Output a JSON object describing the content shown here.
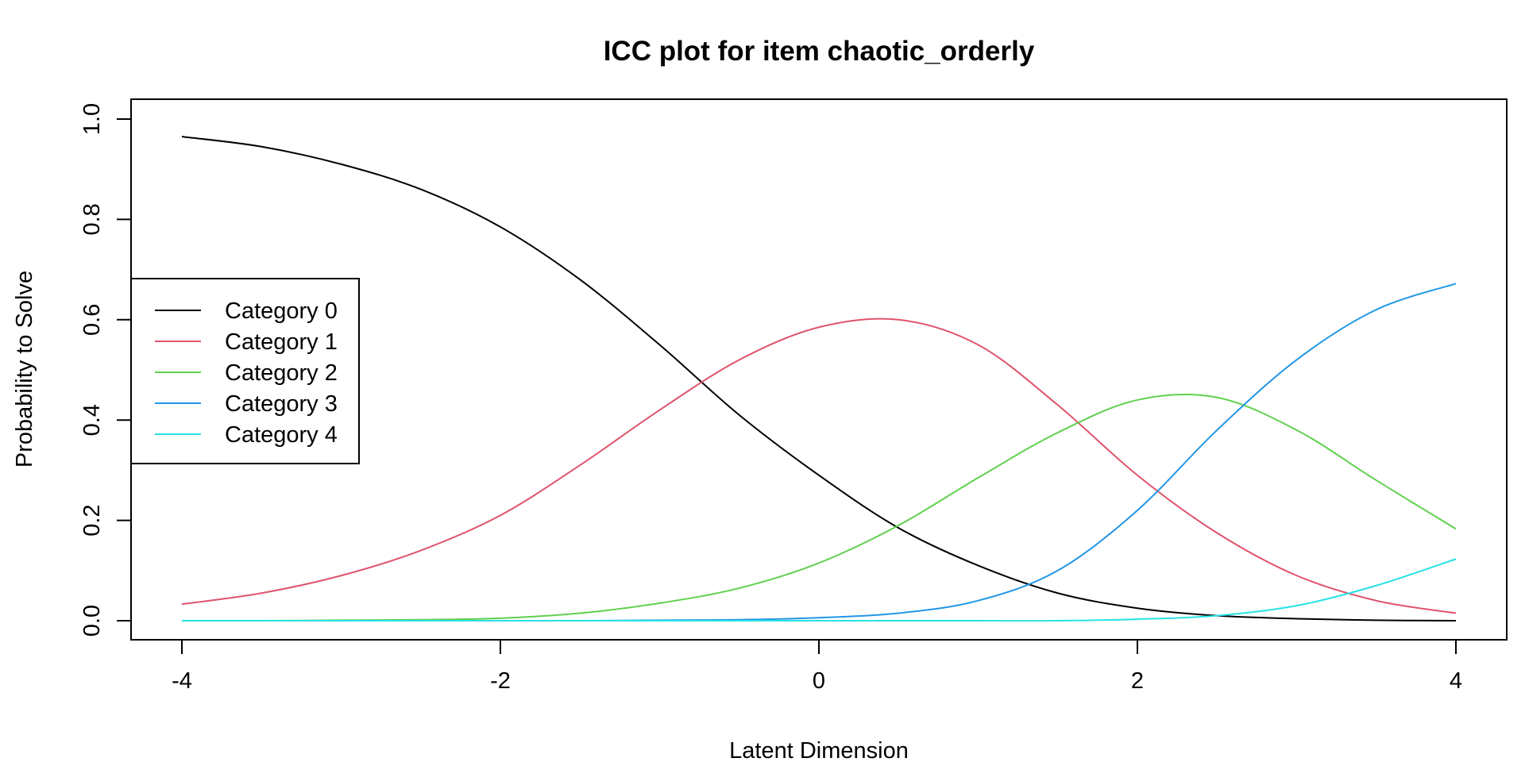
{
  "chart_data": {
    "type": "line",
    "title": "ICC plot for item chaotic_orderly",
    "xlabel": "Latent Dimension",
    "ylabel": "Probability to Solve",
    "xlim": [
      -4,
      4
    ],
    "ylim": [
      0,
      1
    ],
    "xticks": [
      -4,
      -2,
      0,
      2,
      4
    ],
    "yticks": [
      0.0,
      0.2,
      0.4,
      0.6,
      0.8,
      1.0
    ],
    "xtick_labels": [
      "-4",
      "-2",
      "0",
      "2",
      "4"
    ],
    "ytick_labels": [
      "0.0",
      "0.2",
      "0.4",
      "0.6",
      "0.8",
      "1.0"
    ],
    "grid": false,
    "legend_position": "left",
    "x": [
      -4,
      -3.5,
      -3,
      -2.5,
      -2,
      -1.5,
      -1,
      -0.5,
      0,
      0.5,
      1,
      1.5,
      2,
      2.5,
      3,
      3.5,
      4
    ],
    "series": [
      {
        "name": "Category 0",
        "color": "#000000",
        "values": [
          0.965,
          0.945,
          0.91,
          0.86,
          0.785,
          0.68,
          0.55,
          0.41,
          0.29,
          0.185,
          0.11,
          0.055,
          0.025,
          0.01,
          0.004,
          0.001,
          0.0
        ]
      },
      {
        "name": "Category 1",
        "color": "#DF536B",
        "values": [
          0.033,
          0.055,
          0.09,
          0.14,
          0.21,
          0.31,
          0.42,
          0.52,
          0.585,
          0.6,
          0.55,
          0.43,
          0.29,
          0.175,
          0.09,
          0.04,
          0.015
        ]
      },
      {
        "name": "Category 2",
        "color": "#61D04F",
        "values": [
          0.0,
          0.0,
          0.001,
          0.002,
          0.005,
          0.015,
          0.035,
          0.065,
          0.115,
          0.19,
          0.285,
          0.375,
          0.44,
          0.445,
          0.38,
          0.28,
          0.183
        ]
      },
      {
        "name": "Category 3",
        "color": "#2297E6",
        "values": [
          0.0,
          0.0,
          0.0,
          0.0,
          0.0,
          0.0,
          0.001,
          0.002,
          0.006,
          0.015,
          0.04,
          0.1,
          0.22,
          0.38,
          0.52,
          0.62,
          0.672
        ]
      },
      {
        "name": "Category 4",
        "color": "#28E2E5",
        "values": [
          0.0,
          0.0,
          0.0,
          0.0,
          0.0,
          0.0,
          0.0,
          0.0,
          0.0,
          0.0,
          0.0,
          0.0,
          0.003,
          0.01,
          0.03,
          0.07,
          0.123
        ]
      }
    ]
  }
}
